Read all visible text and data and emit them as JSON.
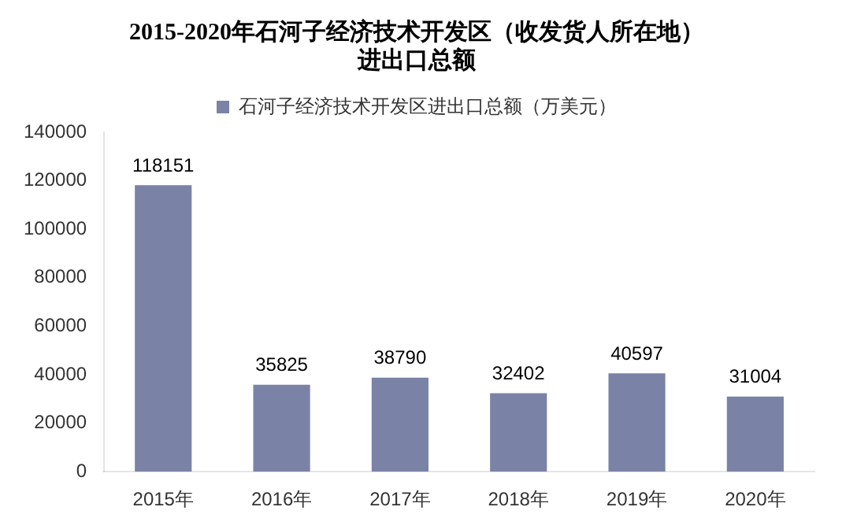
{
  "chart_data": {
    "type": "bar",
    "title": [
      "2015-2020年石河子经济技术开发区（收发货人所在地）",
      "进出口总额"
    ],
    "categories": [
      "2015年",
      "2016年",
      "2017年",
      "2018年",
      "2019年",
      "2020年"
    ],
    "series": [
      {
        "name": "石河子经济技术开发区进出口总额（万美元）",
        "color": "#7a83a6",
        "values": [
          118151,
          35825,
          38790,
          32402,
          40597,
          31004
        ]
      }
    ],
    "ylim": [
      0,
      140000
    ],
    "yticks": [
      0,
      20000,
      40000,
      60000,
      80000,
      100000,
      120000,
      140000
    ],
    "grid": false,
    "legend": "top",
    "data_labels": true
  }
}
